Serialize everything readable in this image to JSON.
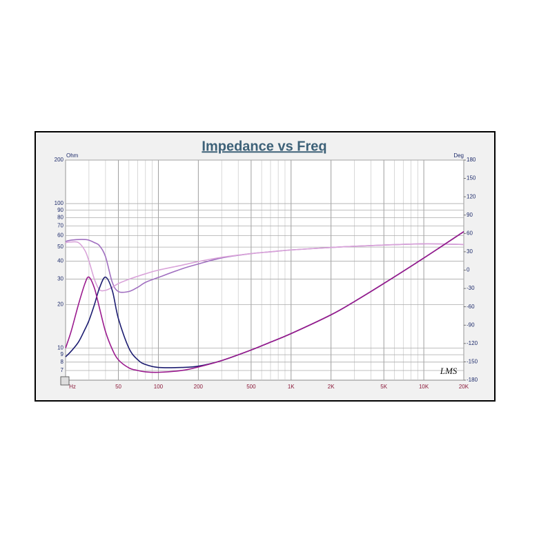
{
  "chart_data": {
    "type": "line",
    "title": "Impedance vs Freq",
    "y_axis_label": "Ohm",
    "y2_axis_label": "Deg",
    "logo": "LMS",
    "xscale": "log",
    "yscale": "log",
    "grid": true,
    "minor_grid": true,
    "xlim": [
      20,
      20000
    ],
    "ylim": [
      6,
      200
    ],
    "y2lim": [
      -180,
      180
    ],
    "xticks": [
      {
        "value": 20,
        "label": "Hz"
      },
      50,
      100,
      200,
      500,
      {
        "value": 1000,
        "label": "1K"
      },
      {
        "value": 2000,
        "label": "2K"
      },
      {
        "value": 5000,
        "label": "5K"
      },
      {
        "value": 10000,
        "label": "10K"
      },
      {
        "value": 20000,
        "label": "20K"
      }
    ],
    "yticks": [
      7,
      8,
      9,
      10,
      20,
      30,
      40,
      50,
      60,
      70,
      80,
      90,
      100,
      200
    ],
    "y2ticks": [
      -180,
      -150,
      -120,
      -90,
      -60,
      -30,
      0,
      30,
      60,
      90,
      120,
      150,
      180
    ],
    "x": [
      20,
      22,
      25,
      28,
      30,
      33,
      36,
      40,
      45,
      50,
      60,
      70,
      80,
      100,
      150,
      200,
      300,
      500,
      700,
      1000,
      2000,
      3000,
      5000,
      10000,
      20000
    ],
    "series": [
      {
        "color": "#a06fc0",
        "axis": "y2",
        "values": [
          47,
          49,
          50,
          50,
          49,
          45,
          40,
          22,
          -20,
          -35,
          -35,
          -28,
          -20,
          -12,
          2,
          10,
          20,
          27,
          30,
          33,
          37,
          39,
          41,
          43,
          42
        ]
      },
      {
        "color": "#d9a3d9",
        "axis": "y2",
        "values": [
          45,
          46,
          45,
          32,
          15,
          -15,
          -32,
          -33,
          -28,
          -22,
          -15,
          -10,
          -6,
          0,
          8,
          14,
          21,
          27,
          30,
          33,
          37,
          39,
          41,
          43,
          42
        ]
      },
      {
        "color": "#1b1b70",
        "values": [
          8.7,
          9.5,
          11,
          13.5,
          15.5,
          20,
          26,
          31,
          25,
          16,
          10,
          8.3,
          7.7,
          7.35,
          7.35,
          7.5,
          8.2,
          9.7,
          11,
          12.6,
          17,
          21,
          28,
          42,
          64
        ]
      },
      {
        "color": "#9a1a8e",
        "values": [
          10,
          13,
          20,
          28,
          31,
          26,
          19,
          13,
          9.8,
          8.3,
          7.3,
          7.0,
          6.85,
          6.8,
          7.0,
          7.4,
          8.2,
          9.7,
          11,
          12.6,
          17,
          21,
          28,
          42,
          64
        ]
      }
    ]
  }
}
